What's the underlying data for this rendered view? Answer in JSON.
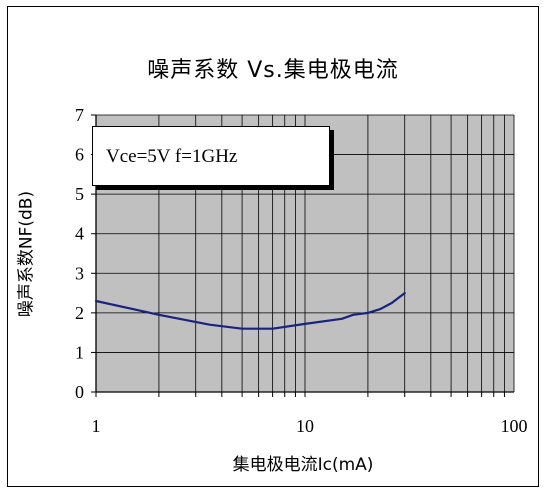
{
  "chart_data": {
    "type": "line",
    "title": "噪声系数 Vs.集电极电流",
    "xlabel": "集电极电流Ic(mA)",
    "ylabel": "噪声系数NF(dB)",
    "x_scale": "log",
    "xlim": [
      1,
      100
    ],
    "ylim": [
      0,
      7
    ],
    "x_ticks": [
      "1",
      "10",
      "100"
    ],
    "y_ticks": [
      "0",
      "1",
      "2",
      "3",
      "4",
      "5",
      "6",
      "7"
    ],
    "grid": true,
    "annotation": "Vce=5V f=1GHz",
    "series": [
      {
        "color": "#1a237e",
        "x": [
          1,
          2,
          3.5,
          5,
          7,
          10,
          15,
          17,
          20,
          23,
          26,
          30
        ],
        "y": [
          2.3,
          1.95,
          1.7,
          1.6,
          1.6,
          1.72,
          1.85,
          1.95,
          2.0,
          2.1,
          2.25,
          2.5
        ]
      }
    ],
    "plot_background": "#c0c0c0"
  }
}
